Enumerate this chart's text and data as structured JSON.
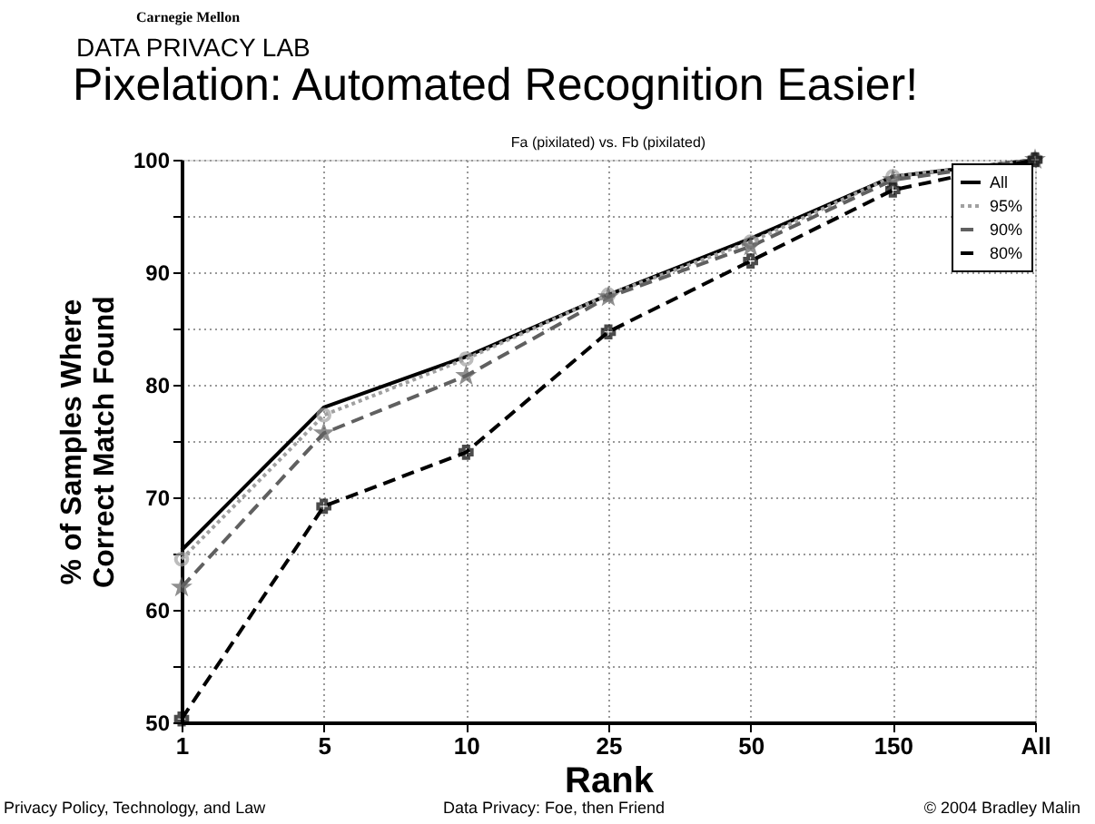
{
  "chart_data": {
    "type": "line",
    "title": "Pixelation: Automated Recognition Easier!",
    "subtitle": "Fa (pixilated) vs. Fb (pixilated)",
    "xlabel": "Rank",
    "ylabel": "% of Samples Where\nCorrect Match Found",
    "categories": [
      "1",
      "5",
      "10",
      "25",
      "50",
      "150",
      "All"
    ],
    "series": [
      {
        "name": "All",
        "color": "#000000",
        "line_style": "solid",
        "marker": "none",
        "values": [
          65.3,
          78,
          82.5,
          88,
          93,
          98.5,
          100
        ]
      },
      {
        "name": "95%",
        "color": "#a0a0a0",
        "line_style": "dotted",
        "marker": "circle",
        "values": [
          64.5,
          77.3,
          82.3,
          88,
          92.7,
          98.5,
          100
        ]
      },
      {
        "name": "90%",
        "color": "#606060",
        "line_style": "dashed",
        "marker": "star",
        "values": [
          62,
          75.7,
          80.8,
          87.8,
          92.3,
          98.2,
          100
        ]
      },
      {
        "name": "80%",
        "color": "#000000",
        "line_style": "dashed",
        "marker": "cross",
        "values": [
          50.3,
          69.2,
          74,
          84.7,
          91,
          97.3,
          100
        ]
      }
    ],
    "ylim": [
      50,
      100
    ],
    "yticks": [
      50,
      {
        "value": 55,
        "label": null
      },
      60,
      {
        "value": 65,
        "label": null
      },
      70,
      {
        "value": 75,
        "label": null
      },
      80,
      {
        "value": 85,
        "label": null
      },
      90,
      {
        "value": 95,
        "label": null
      },
      100
    ],
    "grid": true,
    "legend": "top right",
    "annotations": [
      "Carnegie Mellon",
      "DATA PRIVACY LAB",
      "Privacy Policy, Technology, and Law",
      "Data Privacy: Foe, then Friend",
      "© 2004 Bradley Malin"
    ]
  }
}
